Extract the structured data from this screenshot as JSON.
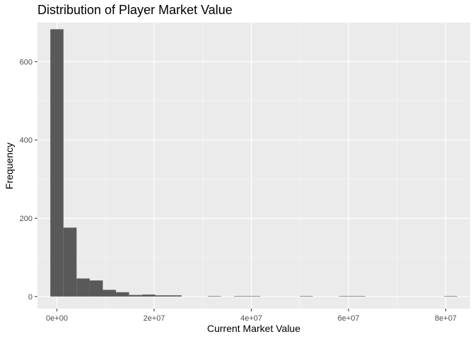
{
  "chart_data": {
    "type": "bar",
    "title": "Distribution of Player Market Value",
    "xlabel": "Current Market Value",
    "ylabel": "Frequency",
    "xlim": [
      -4000000,
      85000000
    ],
    "ylim": [
      -31,
      700
    ],
    "x_ticks": [
      {
        "value": 0,
        "label": "0e+00"
      },
      {
        "value": 20000000,
        "label": "2e+07"
      },
      {
        "value": 40000000,
        "label": "4e+07"
      },
      {
        "value": 60000000,
        "label": "6e+07"
      },
      {
        "value": 80000000,
        "label": "8e+07"
      }
    ],
    "y_ticks": [
      {
        "value": 0,
        "label": "0"
      },
      {
        "value": 200,
        "label": "200"
      },
      {
        "value": 400,
        "label": "400"
      },
      {
        "value": 600,
        "label": "600"
      }
    ],
    "bin_width": 2700000,
    "bin_centers": [
      0,
      2700000,
      5400000,
      8100000,
      10800000,
      13500000,
      16200000,
      18900000,
      21600000,
      24300000,
      27000000,
      29700000,
      32400000,
      35100000,
      37800000,
      40500000,
      43200000,
      45900000,
      48600000,
      51300000,
      54000000,
      56700000,
      59400000,
      62100000,
      64800000,
      67500000,
      70200000,
      72900000,
      75600000,
      78300000,
      81000000
    ],
    "values": [
      683,
      176,
      46,
      41,
      17,
      11,
      4,
      5,
      3,
      3,
      0,
      0,
      1,
      0,
      1,
      1,
      0,
      0,
      0,
      1,
      0,
      0,
      1,
      1,
      0,
      0,
      0,
      0,
      0,
      0,
      1
    ],
    "grid": true,
    "bar_color": "#595959",
    "panel_background": "#ebebeb",
    "grid_color": "#ffffff"
  }
}
